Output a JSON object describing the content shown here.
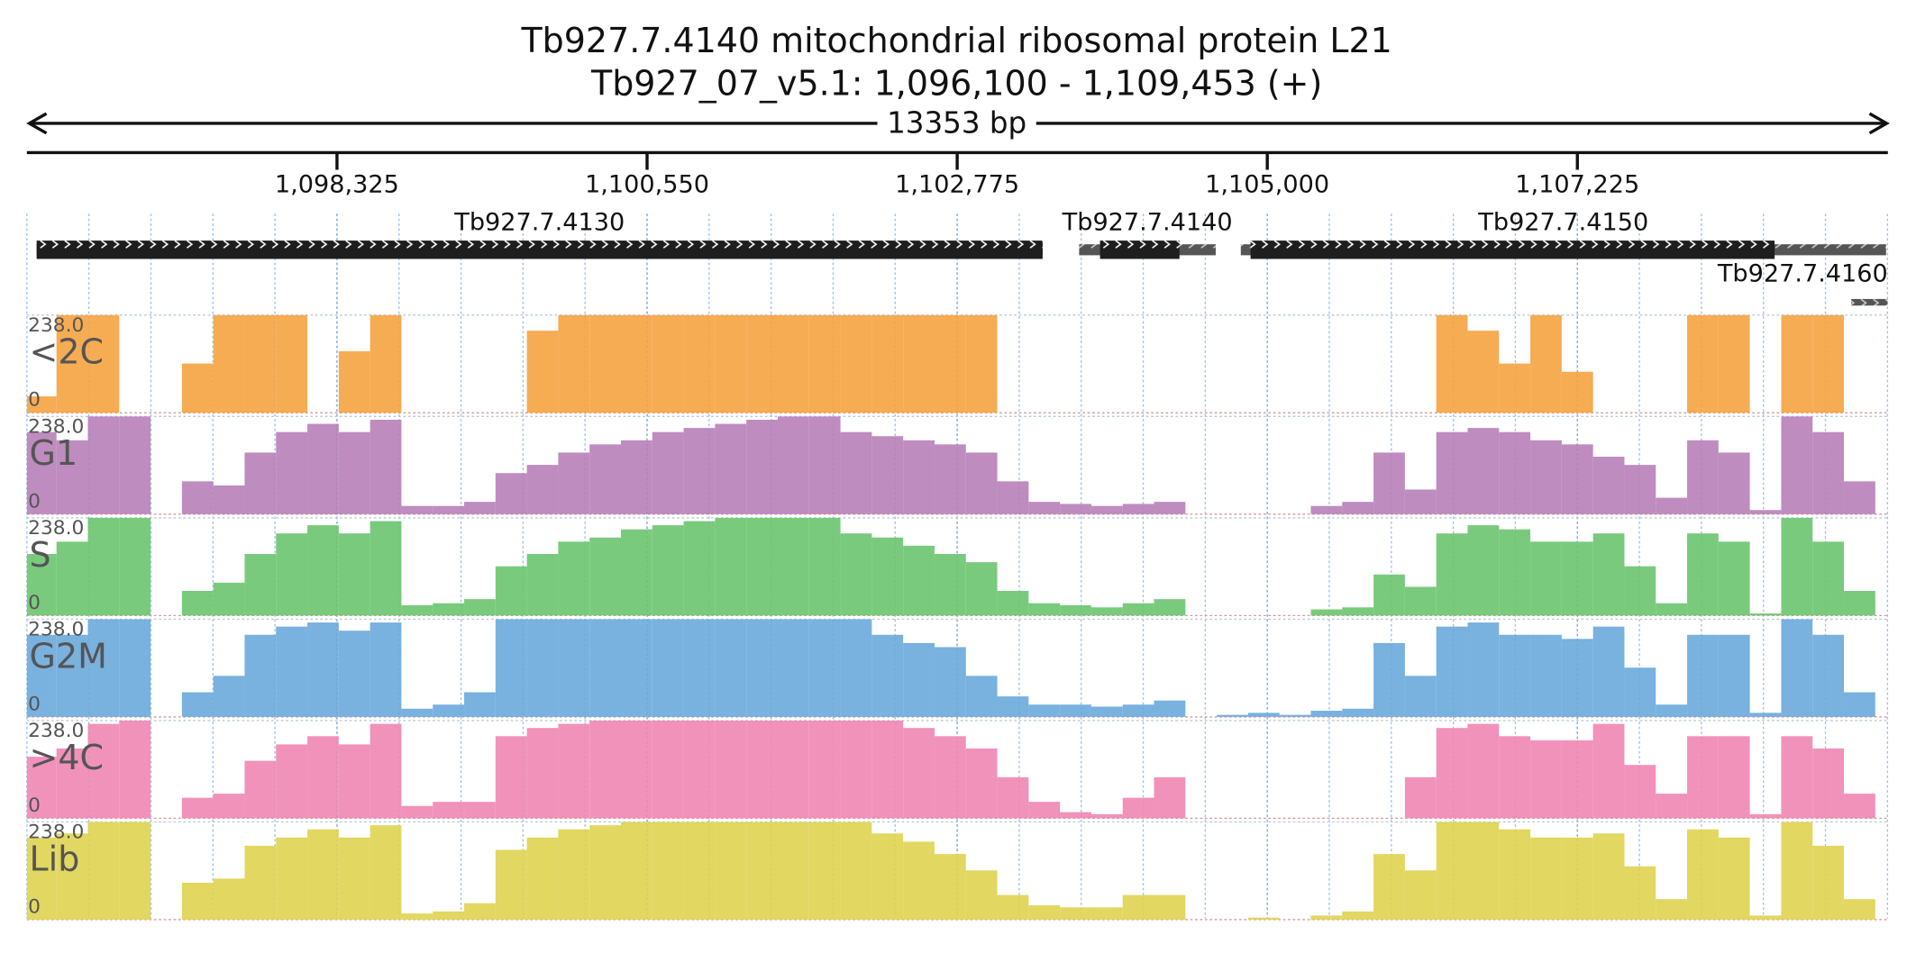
{
  "chart_data": {
    "type": "coverage",
    "title": "Tb927.7.4140  mitochondrial ribosomal protein L21",
    "subtitle": "Tb927_07_v5.1: 1,096,100 - 1,109,453 (+)",
    "span": {
      "value": 13353,
      "label": "13353 bp"
    },
    "xlim": [
      1096100,
      1109453
    ],
    "xticks": [
      {
        "value": 1098325,
        "label": "1,098,325"
      },
      {
        "value": 1100550,
        "label": "1,100,550"
      },
      {
        "value": 1102775,
        "label": "1,102,775"
      },
      {
        "value": 1105000,
        "label": "1,105,000"
      },
      {
        "value": 1107225,
        "label": "1,107,225"
      }
    ],
    "genes": [
      {
        "name": "Tb927.7.4130",
        "start": 1096170,
        "end": 1103388,
        "cds_start": 1096170,
        "cds_end": 1103388
      },
      {
        "name": "Tb927.7.4140",
        "start": 1103650,
        "end": 1104630,
        "cds_start": 1103800,
        "cds_end": 1104370
      },
      {
        "name": "Tb927.7.4150",
        "start": 1104810,
        "end": 1109440,
        "cds_start": 1104880,
        "cds_end": 1108640
      },
      {
        "name": "Tb927.7.4160",
        "start": 1109190,
        "end": 1109450
      }
    ],
    "ylim": [
      0,
      238
    ],
    "yticks": [
      0,
      {
        "value": 238,
        "label": "238.0"
      }
    ],
    "x": [
      1096200,
      1096425,
      1096650,
      1096875,
      1097100,
      1097325,
      1097550,
      1097775,
      1098000,
      1098225,
      1098450,
      1098675,
      1098900,
      1099125,
      1099350,
      1099575,
      1099800,
      1100025,
      1100250,
      1100475,
      1100700,
      1100925,
      1101150,
      1101375,
      1101600,
      1101825,
      1102050,
      1102275,
      1102500,
      1102725,
      1102950,
      1103175,
      1103400,
      1103625,
      1103850,
      1104075,
      1104300,
      1104525,
      1104750,
      1104975,
      1105200,
      1105425,
      1105650,
      1105875,
      1106100,
      1106325,
      1106550,
      1106775,
      1107000,
      1107225,
      1107450,
      1107675,
      1107900,
      1108125,
      1108350,
      1108575,
      1108800,
      1109025,
      1109250
    ],
    "series": [
      {
        "name": "<2C",
        "color": "#f5a340",
        "values": [
          40,
          238,
          238,
          0,
          0,
          120,
          238,
          238,
          238,
          0,
          150,
          238,
          0,
          0,
          0,
          0,
          200,
          238,
          238,
          238,
          238,
          238,
          238,
          238,
          238,
          238,
          238,
          238,
          238,
          238,
          238,
          0,
          0,
          0,
          0,
          0,
          0,
          0,
          0,
          0,
          0,
          0,
          0,
          0,
          0,
          238,
          200,
          120,
          238,
          100,
          0,
          0,
          0,
          238,
          238,
          0,
          238,
          238,
          0
        ]
      },
      {
        "name": "G1",
        "color": "#b77fb8",
        "values": [
          200,
          180,
          238,
          238,
          0,
          80,
          70,
          150,
          200,
          220,
          200,
          230,
          20,
          20,
          30,
          100,
          120,
          150,
          170,
          180,
          200,
          210,
          220,
          230,
          238,
          238,
          200,
          190,
          180,
          170,
          150,
          80,
          30,
          25,
          20,
          25,
          30,
          0,
          0,
          0,
          0,
          20,
          30,
          150,
          60,
          200,
          210,
          200,
          180,
          170,
          140,
          120,
          40,
          180,
          150,
          10,
          238,
          200,
          80
        ]
      },
      {
        "name": "S",
        "color": "#6cc46f",
        "values": [
          150,
          180,
          238,
          238,
          0,
          60,
          80,
          150,
          200,
          220,
          200,
          230,
          25,
          30,
          40,
          120,
          150,
          180,
          190,
          210,
          220,
          230,
          238,
          238,
          238,
          238,
          200,
          190,
          170,
          150,
          130,
          60,
          30,
          25,
          20,
          30,
          40,
          0,
          0,
          0,
          0,
          15,
          20,
          100,
          70,
          200,
          220,
          210,
          180,
          180,
          200,
          120,
          30,
          200,
          180,
          5,
          238,
          180,
          60
        ]
      },
      {
        "name": "G2M",
        "color": "#6aa9dc",
        "values": [
          200,
          200,
          238,
          238,
          0,
          60,
          100,
          200,
          220,
          230,
          210,
          230,
          20,
          30,
          60,
          238,
          238,
          238,
          238,
          238,
          238,
          238,
          238,
          238,
          238,
          238,
          238,
          200,
          180,
          170,
          100,
          50,
          30,
          30,
          25,
          30,
          40,
          0,
          5,
          10,
          5,
          15,
          20,
          180,
          100,
          220,
          230,
          200,
          200,
          190,
          220,
          120,
          30,
          200,
          200,
          10,
          238,
          200,
          60
        ]
      },
      {
        "name": ">4C",
        "color": "#ef86b4",
        "values": [
          150,
          170,
          230,
          238,
          0,
          50,
          60,
          140,
          180,
          200,
          180,
          230,
          30,
          40,
          40,
          200,
          220,
          230,
          238,
          238,
          238,
          238,
          238,
          238,
          238,
          238,
          238,
          238,
          220,
          200,
          170,
          100,
          40,
          15,
          10,
          50,
          100,
          0,
          0,
          0,
          0,
          0,
          0,
          0,
          100,
          220,
          230,
          200,
          190,
          190,
          230,
          130,
          60,
          200,
          200,
          10,
          200,
          170,
          60
        ]
      },
      {
        "name": "Lib",
        "color": "#dfd350",
        "values": [
          200,
          210,
          238,
          238,
          0,
          90,
          100,
          180,
          200,
          220,
          200,
          230,
          15,
          20,
          40,
          170,
          200,
          220,
          230,
          238,
          238,
          238,
          238,
          238,
          238,
          238,
          238,
          210,
          190,
          160,
          120,
          60,
          35,
          30,
          30,
          60,
          60,
          0,
          0,
          5,
          0,
          10,
          20,
          160,
          120,
          238,
          238,
          220,
          200,
          200,
          210,
          130,
          50,
          220,
          200,
          10,
          238,
          180,
          50
        ]
      }
    ]
  }
}
